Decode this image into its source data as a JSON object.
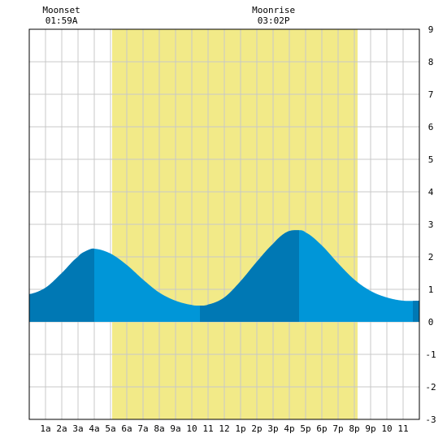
{
  "chart_data": {
    "type": "area",
    "x_labels": [
      "1a",
      "2a",
      "3a",
      "4a",
      "5a",
      "6a",
      "7a",
      "8a",
      "9a",
      "10",
      "11",
      "12",
      "1p",
      "2p",
      "3p",
      "4p",
      "5p",
      "6p",
      "7p",
      "8p",
      "9p",
      "10",
      "11"
    ],
    "y_ticks": [
      "9",
      "8",
      "7",
      "6",
      "5",
      "4",
      "3",
      "2",
      "1",
      "0",
      "-1",
      "-2",
      "-3"
    ],
    "ylim": [
      -3,
      9
    ],
    "xlim_hours": [
      0,
      24
    ],
    "grid": true,
    "daylight_hours": [
      5.1,
      20.2
    ],
    "tide_points": [
      {
        "x": 0.0,
        "y": 0.85
      },
      {
        "x": 1.0,
        "y": 1.05
      },
      {
        "x": 2.0,
        "y": 1.5
      },
      {
        "x": 3.0,
        "y": 2.0
      },
      {
        "x": 3.5,
        "y": 2.18
      },
      {
        "x": 4.0,
        "y": 2.25
      },
      {
        "x": 5.0,
        "y": 2.1
      },
      {
        "x": 6.0,
        "y": 1.75
      },
      {
        "x": 7.0,
        "y": 1.3
      },
      {
        "x": 8.0,
        "y": 0.9
      },
      {
        "x": 9.0,
        "y": 0.65
      },
      {
        "x": 10.0,
        "y": 0.52
      },
      {
        "x": 10.5,
        "y": 0.5
      },
      {
        "x": 11.0,
        "y": 0.53
      },
      {
        "x": 12.0,
        "y": 0.75
      },
      {
        "x": 13.0,
        "y": 1.25
      },
      {
        "x": 14.0,
        "y": 1.85
      },
      {
        "x": 15.0,
        "y": 2.4
      },
      {
        "x": 15.8,
        "y": 2.75
      },
      {
        "x": 16.5,
        "y": 2.82
      },
      {
        "x": 17.0,
        "y": 2.75
      },
      {
        "x": 18.0,
        "y": 2.35
      },
      {
        "x": 19.0,
        "y": 1.8
      },
      {
        "x": 20.0,
        "y": 1.3
      },
      {
        "x": 21.0,
        "y": 0.95
      },
      {
        "x": 22.0,
        "y": 0.75
      },
      {
        "x": 23.0,
        "y": 0.65
      },
      {
        "x": 24.0,
        "y": 0.65
      }
    ],
    "dark_bands": [
      [
        0,
        4.0
      ],
      [
        10.5,
        16.6
      ],
      [
        23.6,
        24
      ]
    ],
    "annotations": [
      {
        "label": "Moonset",
        "time": "01:59A",
        "hour": 1.98
      },
      {
        "label": "Moonrise",
        "time": "03:02P",
        "hour": 15.03
      }
    ],
    "colors": {
      "daylight": "#f2ea88",
      "tide_light": "#0096d8",
      "tide_dark": "#0078b4",
      "grid": "#c8c8c8",
      "axis": "#000000"
    }
  }
}
